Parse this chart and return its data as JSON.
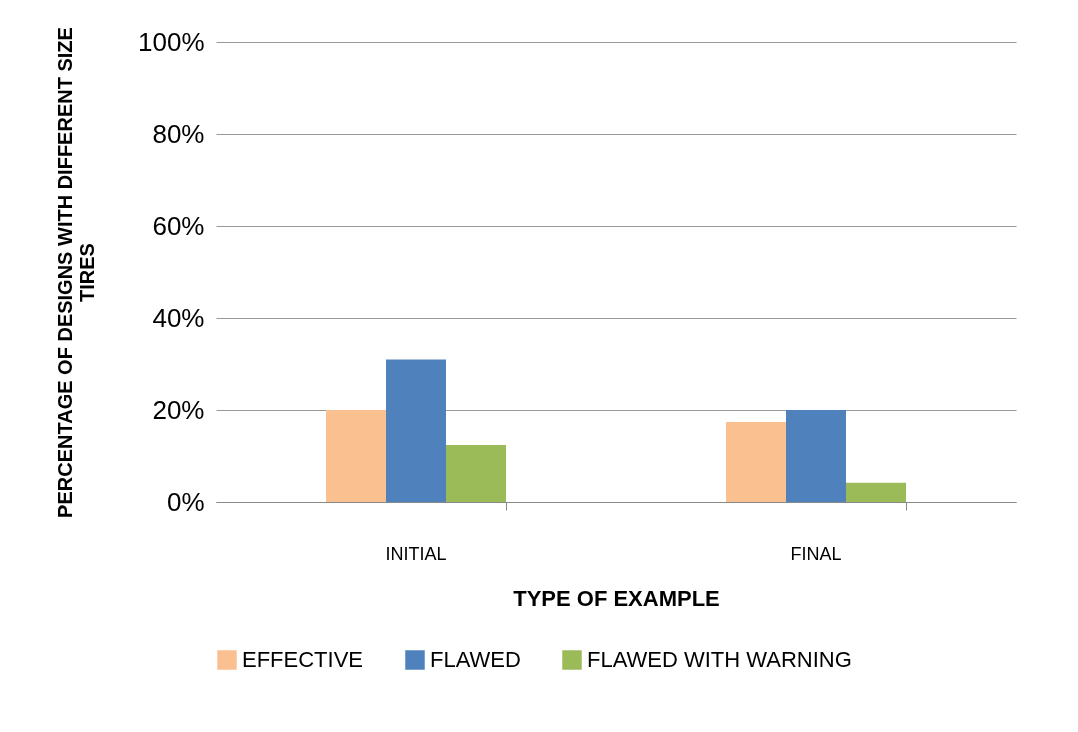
{
  "chart_data": {
    "type": "bar",
    "xlabel": "TYPE OF EXAMPLE",
    "ylabel": "PERCENTAGE OF DESIGNS WITH DIFFERENT SIZE TIRES",
    "categories": [
      "INITIAL",
      "FINAL"
    ],
    "series": [
      {
        "name": "EFFECTIVE",
        "color": "#fac090",
        "values": [
          20,
          17.4
        ]
      },
      {
        "name": "FLAWED",
        "color": "#4f81bd",
        "values": [
          31,
          20
        ]
      },
      {
        "name": "FLAWED WITH WARNING",
        "color": "#9bbb59",
        "values": [
          12.4,
          4.2
        ]
      }
    ],
    "ylim": [
      0,
      100
    ],
    "yticks": [
      {
        "value": 0,
        "label": "0%"
      },
      {
        "value": 20,
        "label": "20%"
      },
      {
        "value": 40,
        "label": "40%"
      },
      {
        "value": 60,
        "label": "60%"
      },
      {
        "value": 80,
        "label": "80%"
      },
      {
        "value": 100,
        "label": "100%"
      }
    ],
    "grid": "y",
    "legend": "bottom"
  }
}
